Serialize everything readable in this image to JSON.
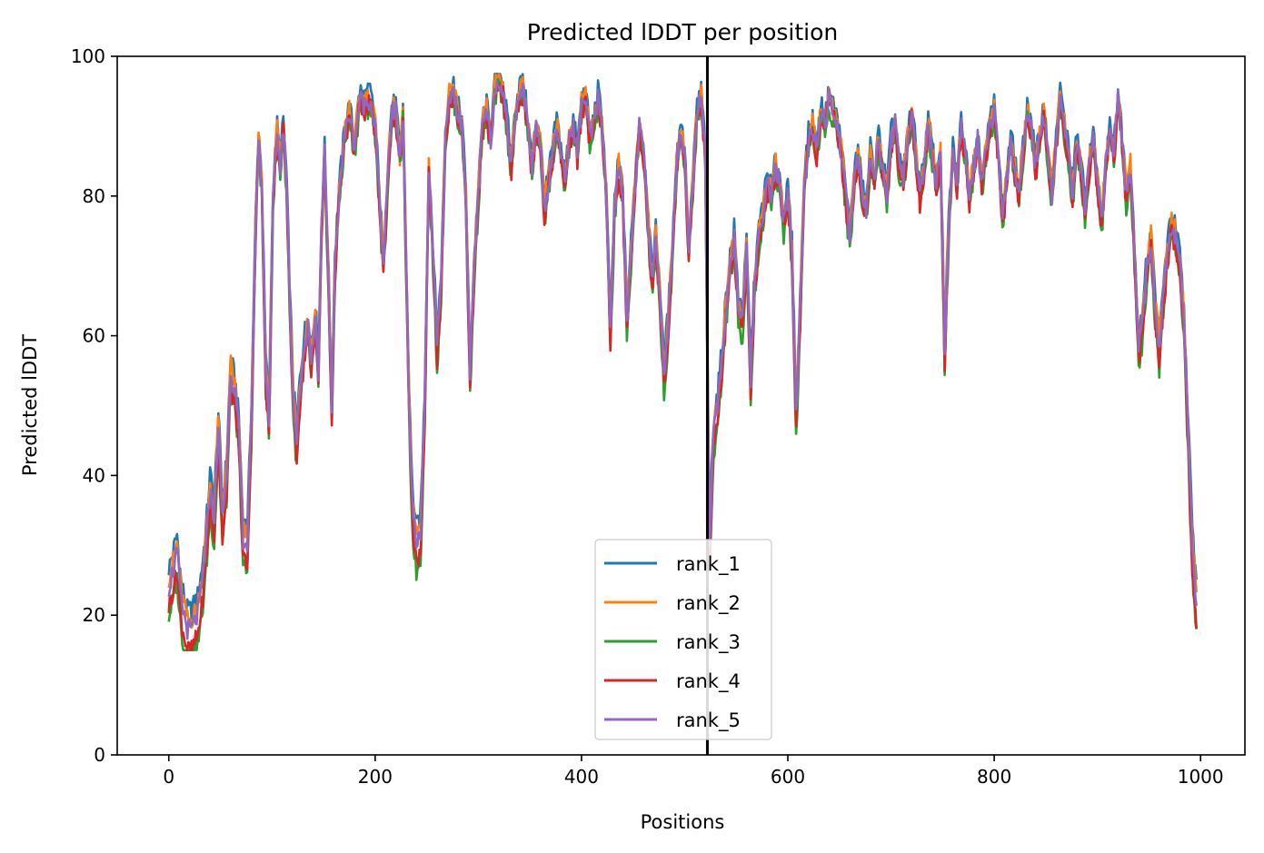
{
  "chart_data": {
    "type": "line",
    "title": "Predicted lDDT per position",
    "xlabel": "Positions",
    "ylabel": "Predicted lDDT",
    "xlim": [
      -50,
      1043
    ],
    "ylim": [
      0,
      100
    ],
    "xticks": [
      0,
      200,
      400,
      600,
      800,
      1000
    ],
    "yticks": [
      0,
      20,
      40,
      60,
      80,
      100
    ],
    "grid": false,
    "legend_position": "bottom-center",
    "vline": {
      "x": 522,
      "color": "#000000"
    },
    "x_range": [
      0,
      996
    ],
    "series": [
      {
        "name": "rank_1",
        "color": "#1f77b4",
        "offset": 1.2
      },
      {
        "name": "rank_2",
        "color": "#ff7f0e",
        "offset": 0.6
      },
      {
        "name": "rank_3",
        "color": "#2ca02c",
        "offset": -1.2
      },
      {
        "name": "rank_4",
        "color": "#d62728",
        "offset": -0.8
      },
      {
        "name": "rank_5",
        "color": "#9467bd",
        "offset": 0.0
      }
    ],
    "profile": [
      [
        0,
        24
      ],
      [
        5,
        27
      ],
      [
        8,
        29
      ],
      [
        12,
        22
      ],
      [
        18,
        18
      ],
      [
        22,
        18
      ],
      [
        28,
        20
      ],
      [
        32,
        24
      ],
      [
        36,
        30
      ],
      [
        40,
        38
      ],
      [
        44,
        34
      ],
      [
        48,
        47
      ],
      [
        52,
        34
      ],
      [
        56,
        40
      ],
      [
        60,
        55
      ],
      [
        64,
        52
      ],
      [
        68,
        46
      ],
      [
        72,
        31
      ],
      [
        76,
        30
      ],
      [
        80,
        48
      ],
      [
        84,
        75
      ],
      [
        87,
        88
      ],
      [
        90,
        82
      ],
      [
        94,
        55
      ],
      [
        97,
        48
      ],
      [
        101,
        80
      ],
      [
        105,
        89
      ],
      [
        108,
        84
      ],
      [
        111,
        90
      ],
      [
        114,
        82
      ],
      [
        118,
        62
      ],
      [
        121,
        50
      ],
      [
        124,
        45
      ],
      [
        127,
        52
      ],
      [
        131,
        58
      ],
      [
        135,
        62
      ],
      [
        138,
        56
      ],
      [
        142,
        63
      ],
      [
        145,
        55
      ],
      [
        148,
        75
      ],
      [
        151,
        86
      ],
      [
        154,
        72
      ],
      [
        158,
        50
      ],
      [
        161,
        70
      ],
      [
        165,
        80
      ],
      [
        170,
        88
      ],
      [
        175,
        92
      ],
      [
        180,
        87
      ],
      [
        185,
        94
      ],
      [
        190,
        93
      ],
      [
        195,
        94
      ],
      [
        200,
        90
      ],
      [
        204,
        80
      ],
      [
        208,
        70
      ],
      [
        212,
        82
      ],
      [
        216,
        92
      ],
      [
        220,
        92
      ],
      [
        224,
        85
      ],
      [
        227,
        92
      ],
      [
        230,
        70
      ],
      [
        233,
        50
      ],
      [
        236,
        36
      ],
      [
        240,
        30
      ],
      [
        244,
        32
      ],
      [
        248,
        50
      ],
      [
        252,
        84
      ],
      [
        256,
        72
      ],
      [
        260,
        58
      ],
      [
        264,
        68
      ],
      [
        268,
        88
      ],
      [
        272,
        94
      ],
      [
        276,
        95
      ],
      [
        280,
        92
      ],
      [
        284,
        90
      ],
      [
        288,
        80
      ],
      [
        292,
        54
      ],
      [
        296,
        70
      ],
      [
        300,
        80
      ],
      [
        304,
        90
      ],
      [
        308,
        92
      ],
      [
        312,
        88
      ],
      [
        316,
        95
      ],
      [
        320,
        97
      ],
      [
        324,
        95
      ],
      [
        328,
        90
      ],
      [
        332,
        84
      ],
      [
        336,
        92
      ],
      [
        340,
        95
      ],
      [
        344,
        95
      ],
      [
        348,
        90
      ],
      [
        352,
        84
      ],
      [
        356,
        90
      ],
      [
        360,
        88
      ],
      [
        364,
        78
      ],
      [
        368,
        82
      ],
      [
        372,
        86
      ],
      [
        376,
        90
      ],
      [
        380,
        86
      ],
      [
        384,
        82
      ],
      [
        388,
        88
      ],
      [
        392,
        90
      ],
      [
        396,
        86
      ],
      [
        400,
        93
      ],
      [
        404,
        94
      ],
      [
        408,
        88
      ],
      [
        412,
        90
      ],
      [
        416,
        94
      ],
      [
        420,
        90
      ],
      [
        424,
        80
      ],
      [
        428,
        60
      ],
      [
        432,
        78
      ],
      [
        436,
        84
      ],
      [
        440,
        80
      ],
      [
        444,
        62
      ],
      [
        448,
        72
      ],
      [
        452,
        82
      ],
      [
        456,
        90
      ],
      [
        460,
        86
      ],
      [
        464,
        78
      ],
      [
        468,
        68
      ],
      [
        472,
        74
      ],
      [
        476,
        66
      ],
      [
        480,
        54
      ],
      [
        484,
        62
      ],
      [
        488,
        72
      ],
      [
        492,
        84
      ],
      [
        496,
        90
      ],
      [
        500,
        86
      ],
      [
        504,
        72
      ],
      [
        508,
        82
      ],
      [
        512,
        92
      ],
      [
        516,
        94
      ],
      [
        520,
        86
      ],
      [
        524,
        30
      ],
      [
        528,
        46
      ],
      [
        532,
        50
      ],
      [
        536,
        56
      ],
      [
        540,
        64
      ],
      [
        544,
        70
      ],
      [
        548,
        74
      ],
      [
        552,
        64
      ],
      [
        556,
        62
      ],
      [
        560,
        72
      ],
      [
        564,
        54
      ],
      [
        568,
        68
      ],
      [
        572,
        74
      ],
      [
        576,
        78
      ],
      [
        580,
        82
      ],
      [
        584,
        80
      ],
      [
        588,
        84
      ],
      [
        592,
        82
      ],
      [
        596,
        76
      ],
      [
        600,
        80
      ],
      [
        604,
        72
      ],
      [
        608,
        48
      ],
      [
        612,
        64
      ],
      [
        616,
        82
      ],
      [
        620,
        88
      ],
      [
        624,
        90
      ],
      [
        628,
        86
      ],
      [
        632,
        92
      ],
      [
        636,
        90
      ],
      [
        640,
        94
      ],
      [
        644,
        92
      ],
      [
        648,
        90
      ],
      [
        652,
        86
      ],
      [
        656,
        80
      ],
      [
        660,
        74
      ],
      [
        664,
        82
      ],
      [
        668,
        86
      ],
      [
        672,
        80
      ],
      [
        676,
        78
      ],
      [
        680,
        86
      ],
      [
        684,
        82
      ],
      [
        688,
        88
      ],
      [
        692,
        84
      ],
      [
        696,
        80
      ],
      [
        700,
        88
      ],
      [
        704,
        90
      ],
      [
        708,
        84
      ],
      [
        712,
        82
      ],
      [
        716,
        88
      ],
      [
        720,
        92
      ],
      [
        724,
        86
      ],
      [
        728,
        80
      ],
      [
        732,
        84
      ],
      [
        736,
        90
      ],
      [
        740,
        86
      ],
      [
        744,
        82
      ],
      [
        748,
        86
      ],
      [
        752,
        58
      ],
      [
        756,
        76
      ],
      [
        760,
        86
      ],
      [
        764,
        82
      ],
      [
        768,
        90
      ],
      [
        772,
        86
      ],
      [
        776,
        80
      ],
      [
        780,
        84
      ],
      [
        784,
        88
      ],
      [
        788,
        82
      ],
      [
        792,
        86
      ],
      [
        796,
        90
      ],
      [
        800,
        92
      ],
      [
        804,
        86
      ],
      [
        808,
        76
      ],
      [
        812,
        82
      ],
      [
        816,
        88
      ],
      [
        820,
        84
      ],
      [
        824,
        80
      ],
      [
        828,
        86
      ],
      [
        832,
        92
      ],
      [
        836,
        90
      ],
      [
        840,
        84
      ],
      [
        844,
        88
      ],
      [
        848,
        92
      ],
      [
        852,
        86
      ],
      [
        856,
        80
      ],
      [
        860,
        88
      ],
      [
        864,
        94
      ],
      [
        868,
        90
      ],
      [
        872,
        86
      ],
      [
        876,
        80
      ],
      [
        880,
        88
      ],
      [
        884,
        84
      ],
      [
        888,
        78
      ],
      [
        892,
        84
      ],
      [
        896,
        88
      ],
      [
        900,
        82
      ],
      [
        904,
        76
      ],
      [
        908,
        84
      ],
      [
        912,
        90
      ],
      [
        916,
        86
      ],
      [
        920,
        94
      ],
      [
        924,
        88
      ],
      [
        928,
        80
      ],
      [
        932,
        84
      ],
      [
        936,
        72
      ],
      [
        940,
        58
      ],
      [
        944,
        62
      ],
      [
        948,
        70
      ],
      [
        952,
        74
      ],
      [
        956,
        64
      ],
      [
        960,
        58
      ],
      [
        964,
        66
      ],
      [
        968,
        72
      ],
      [
        972,
        76
      ],
      [
        976,
        74
      ],
      [
        980,
        70
      ],
      [
        984,
        62
      ],
      [
        988,
        46
      ],
      [
        992,
        30
      ],
      [
        996,
        22
      ]
    ]
  }
}
